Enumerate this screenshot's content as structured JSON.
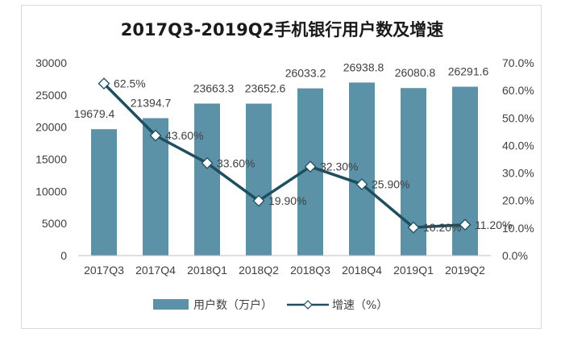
{
  "chart_data": {
    "type": "bar+line",
    "title": "2017Q3-2019Q2手机银行用户数及增速",
    "categories": [
      "2017Q3",
      "2017Q4",
      "2018Q1",
      "2018Q2",
      "2018Q3",
      "2018Q4",
      "2019Q1",
      "2019Q2"
    ],
    "series": [
      {
        "name": "用户数（万户）",
        "type": "bar",
        "axis": "left",
        "color": "#5b92a8",
        "values": [
          19679.4,
          21394.7,
          23663.3,
          23652.6,
          26033.2,
          26938.8,
          26080.8,
          26291.6
        ],
        "labels": [
          "19679.4",
          "21394.7",
          "23663.3",
          "23652.6",
          "26033.2",
          "26938.8",
          "26080.8",
          "26291.6"
        ]
      },
      {
        "name": "增速（%）",
        "type": "line",
        "axis": "right",
        "color": "#1f4e5f",
        "values": [
          62.5,
          43.6,
          33.6,
          19.9,
          32.3,
          25.9,
          10.2,
          11.2
        ],
        "labels": [
          "62.5%",
          "43.60%",
          "33.60%",
          "19.90%",
          "32.30%",
          "25.90%",
          "10.20%",
          "11.20%"
        ]
      }
    ],
    "y_left": {
      "min": 0,
      "max": 30000,
      "ticks": [
        "0",
        "5000",
        "10000",
        "15000",
        "20000",
        "25000",
        "30000"
      ]
    },
    "y_right": {
      "min": 0,
      "max": 70,
      "ticks": [
        "0.0%",
        "10.0%",
        "20.0%",
        "30.0%",
        "40.0%",
        "50.0%",
        "60.0%",
        "70.0%"
      ]
    },
    "grid": false,
    "legend": "bottom"
  }
}
